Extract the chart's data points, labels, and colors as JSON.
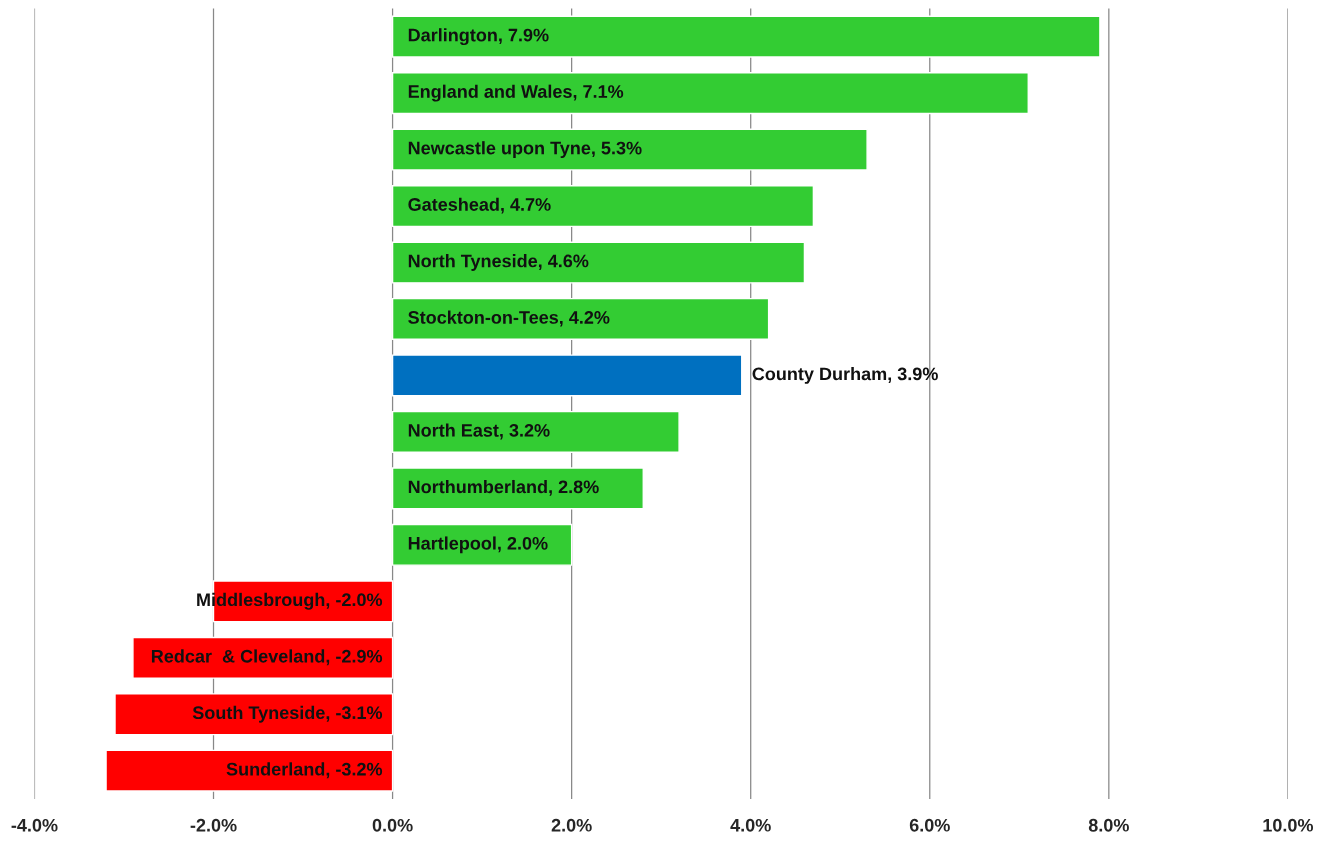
{
  "chart_data": {
    "type": "bar",
    "orientation": "horizontal",
    "categories": [
      null,
      null,
      null,
      null,
      null,
      null,
      null,
      null,
      null,
      null,
      null,
      null,
      null,
      null
    ],
    "values": [
      7.9,
      7.1,
      5.3,
      4.7,
      4.6,
      4.2,
      3.9,
      3.2,
      2.8,
      2.0,
      -2.0,
      -2.9,
      -3.1,
      -3.2
    ],
    "colors": [
      "#33cc33",
      "#33cc33",
      "#33cc33",
      "#33cc33",
      "#33cc33",
      "#33cc33",
      "#0070c0",
      "#33cc33",
      "#33cc33",
      "#33cc33",
      "#ff0000",
      "#ff0000",
      "#ff0000",
      "#ff0000"
    ],
    "value_labels": [
      "Darlington, 7.9%",
      "England and Wales, 7.1%",
      "Newcastle upon Tyne, 5.3%",
      "Gateshead, 4.7%",
      "North Tyneside, 4.6%",
      "Stockton-on-Tees, 4.2%",
      "County Durham, 3.9%",
      "North East, 3.2%",
      "Northumberland, 2.8%",
      "Hartlepool, 2.0%",
      "Middlesbrough, -2.0%",
      "Redcar  & Cleveland, -2.9%",
      "South Tyneside, -3.1%",
      "Sunderland, -3.2%"
    ],
    "xlim": [
      -4,
      10
    ],
    "xticks": [
      {
        "value": -4,
        "label": "-4.0%"
      },
      {
        "value": -2,
        "label": "-2.0%"
      },
      {
        "value": 0,
        "label": "0.0%"
      },
      {
        "value": 2,
        "label": "2.0%"
      },
      {
        "value": 4,
        "label": "4.0%"
      },
      {
        "value": 6,
        "label": "6.0%"
      },
      {
        "value": 8,
        "label": "8.0%"
      },
      {
        "value": 10,
        "label": "10.0%"
      }
    ],
    "grid": "x"
  }
}
